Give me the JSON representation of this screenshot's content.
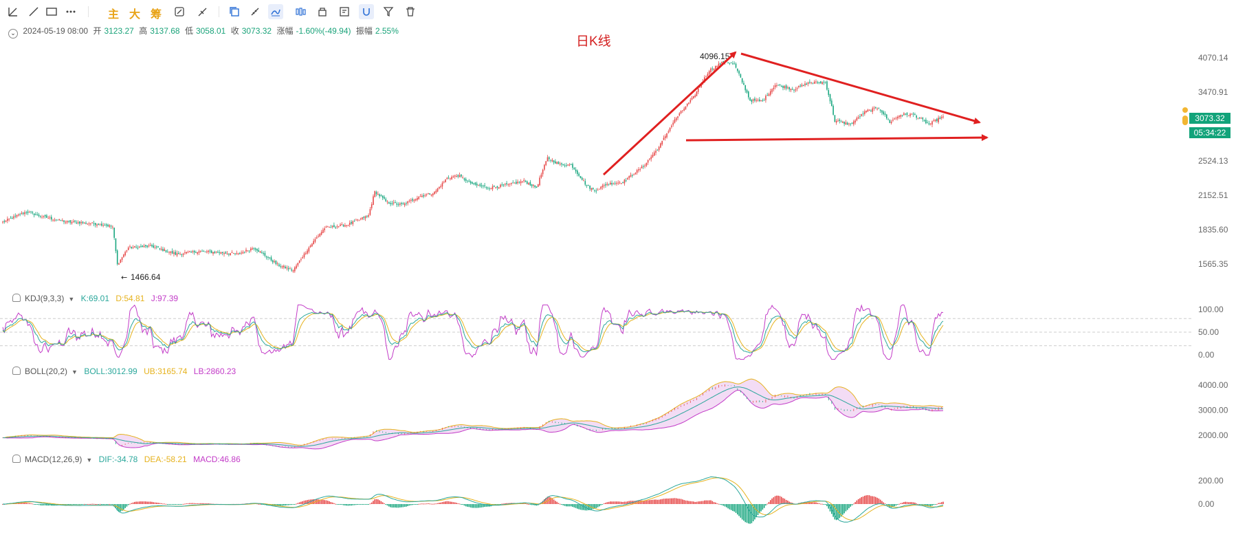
{
  "toolbar": {
    "tools": [
      "trendline-icon",
      "line-icon",
      "rectangle-icon",
      "more-icon",
      "zhu-tool",
      "da-tool",
      "chou-tool",
      "annotate-icon",
      "brush-icon",
      "copy-icon",
      "ruler-icon",
      "draw-active-icon",
      "candles-icon",
      "lock-icon",
      "note-icon",
      "magnet-icon",
      "filter-icon",
      "trash-icon"
    ],
    "text_tools": [
      "主",
      "大",
      "筹"
    ]
  },
  "ohlc": {
    "date": "2024-05-19 08:00",
    "open_label": "开",
    "open": "3123.27",
    "high_label": "高",
    "high": "3137.68",
    "low_label": "低",
    "low": "3058.01",
    "close_label": "收",
    "close": "3073.32",
    "change_label": "涨幅",
    "change": "-1.60%(-49.94)",
    "amp_label": "振幅",
    "amp": "2.55%"
  },
  "annotation": {
    "title": "日K线",
    "high_label": "4096.15",
    "low_label": "1466.64"
  },
  "price_badges": {
    "price": "3073.32",
    "countdown": "05:34:22"
  },
  "indicators": {
    "kdj": {
      "name": "KDJ(9,3,3)",
      "k": "K:69.01",
      "d": "D:54.81",
      "j": "J:97.39",
      "ticks": [
        "100.00",
        "50.00",
        "0.00"
      ],
      "range": [
        -10,
        110
      ]
    },
    "boll": {
      "name": "BOLL(20,2)",
      "boll": "BOLL:3012.99",
      "ub": "UB:3165.74",
      "lb": "LB:2860.23",
      "ticks": [
        "4000.00",
        "3000.00",
        "2000.00"
      ]
    },
    "macd": {
      "name": "MACD(12,26,9)",
      "dif": "DIF:-34.78",
      "dea": "DEA:-58.21",
      "macd": "MACD:46.86",
      "ticks": [
        "200.00",
        "0.00"
      ]
    }
  },
  "colors": {
    "up": "#e64646",
    "down": "#18a67f",
    "k": "#2aa79b",
    "d": "#e6b21d",
    "j": "#c23ac7",
    "trend": "#e02020",
    "badge": "#12a37a"
  },
  "chart_data": {
    "type": "candlestick",
    "title": "日K线",
    "yticks": [
      "4070.14",
      "3470.91",
      "2524.13",
      "2152.51",
      "1835.60",
      "1565.35"
    ],
    "ytick_values": [
      4070.14,
      3470.91,
      2524.13,
      2152.51,
      1835.6,
      1565.35
    ],
    "anchor_points": [
      [
        0,
        1900
      ],
      [
        15,
        1995
      ],
      [
        25,
        1950
      ],
      [
        40,
        1905
      ],
      [
        56,
        1890
      ],
      [
        64,
        1880
      ],
      [
        70,
        1860
      ],
      [
        73,
        1560
      ],
      [
        80,
        1690
      ],
      [
        95,
        1700
      ],
      [
        110,
        1640
      ],
      [
        125,
        1660
      ],
      [
        140,
        1650
      ],
      [
        150,
        1640
      ],
      [
        160,
        1690
      ],
      [
        175,
        1560
      ],
      [
        185,
        1520
      ],
      [
        195,
        1690
      ],
      [
        205,
        1850
      ],
      [
        220,
        1880
      ],
      [
        233,
        1960
      ],
      [
        237,
        2190
      ],
      [
        245,
        2080
      ],
      [
        255,
        2060
      ],
      [
        265,
        2140
      ],
      [
        275,
        2180
      ],
      [
        283,
        2330
      ],
      [
        290,
        2360
      ],
      [
        300,
        2260
      ],
      [
        310,
        2230
      ],
      [
        322,
        2260
      ],
      [
        332,
        2300
      ],
      [
        340,
        2230
      ],
      [
        347,
        2560
      ],
      [
        355,
        2480
      ],
      [
        362,
        2480
      ],
      [
        372,
        2250
      ],
      [
        377,
        2200
      ],
      [
        385,
        2270
      ],
      [
        395,
        2290
      ],
      [
        408,
        2460
      ],
      [
        418,
        2690
      ],
      [
        428,
        3050
      ],
      [
        440,
        3390
      ],
      [
        450,
        3840
      ],
      [
        460,
        4010
      ],
      [
        466,
        3940
      ],
      [
        476,
        3340
      ],
      [
        484,
        3330
      ],
      [
        492,
        3590
      ],
      [
        504,
        3520
      ],
      [
        514,
        3630
      ],
      [
        524,
        3630
      ],
      [
        530,
        3040
      ],
      [
        540,
        2990
      ],
      [
        550,
        3180
      ],
      [
        558,
        3230
      ],
      [
        565,
        3020
      ],
      [
        572,
        3130
      ],
      [
        580,
        3130
      ],
      [
        590,
        2990
      ],
      [
        598,
        3090
      ]
    ],
    "n_candles": 600
  }
}
